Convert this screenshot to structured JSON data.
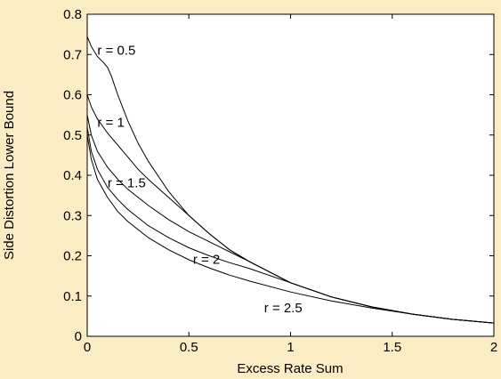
{
  "colors": {
    "background": "#fcecc4",
    "plot_area": "#ffffff",
    "line": "#000000"
  },
  "chart_data": {
    "type": "line",
    "title": "",
    "xlabel": "Excess Rate Sum",
    "ylabel": "Side Distortion Lower Bound",
    "xlim": [
      0,
      2
    ],
    "ylim": [
      0,
      0.8
    ],
    "xticks": [
      0,
      0.5,
      1,
      1.5,
      2
    ],
    "xtick_labels": [
      "0",
      "0.5",
      "1",
      "1.5",
      "2"
    ],
    "yticks": [
      0,
      0.1,
      0.2,
      0.3,
      0.4,
      0.5,
      0.6,
      0.7,
      0.8
    ],
    "ytick_labels": [
      "0",
      "0.1",
      "0.2",
      "0.3",
      "0.4",
      "0.5",
      "0.6",
      "0.7",
      "0.8"
    ],
    "grid": false,
    "series": [
      {
        "name": "r = 0.5",
        "x": [
          0,
          0.02,
          0.05,
          0.08,
          0.1,
          0.12,
          0.15,
          0.2,
          0.25,
          0.3,
          0.4,
          0.5,
          0.6,
          0.7,
          0.8,
          1.0,
          1.2,
          1.4,
          1.6,
          1.8,
          2.0
        ],
        "y": [
          0.745,
          0.72,
          0.695,
          0.68,
          0.668,
          0.645,
          0.6,
          0.535,
          0.48,
          0.435,
          0.36,
          0.3,
          0.255,
          0.215,
          0.185,
          0.133,
          0.098,
          0.073,
          0.055,
          0.042,
          0.033
        ],
        "label_at": [
          0.05,
          0.7
        ]
      },
      {
        "name": "r = 1",
        "x": [
          0,
          0.02,
          0.05,
          0.1,
          0.15,
          0.2,
          0.25,
          0.3,
          0.4,
          0.5,
          0.6,
          0.7,
          0.8,
          1.0,
          1.2,
          1.4,
          1.6,
          1.8,
          2.0
        ],
        "y": [
          0.6,
          0.57,
          0.54,
          0.505,
          0.475,
          0.445,
          0.415,
          0.39,
          0.345,
          0.3,
          0.255,
          0.215,
          0.185,
          0.133,
          0.098,
          0.073,
          0.055,
          0.042,
          0.033
        ],
        "label_at": [
          0.05,
          0.52
        ]
      },
      {
        "name": "r = 1.5",
        "x": [
          0,
          0.02,
          0.05,
          0.1,
          0.15,
          0.2,
          0.3,
          0.4,
          0.5,
          0.6,
          0.7,
          0.8,
          1.0,
          1.2,
          1.4,
          1.6,
          1.8,
          2.0
        ],
        "y": [
          0.55,
          0.5,
          0.46,
          0.42,
          0.39,
          0.365,
          0.325,
          0.29,
          0.26,
          0.235,
          0.21,
          0.185,
          0.133,
          0.098,
          0.073,
          0.055,
          0.042,
          0.033
        ],
        "label_at": [
          0.1,
          0.37
        ]
      },
      {
        "name": "r = 2",
        "x": [
          0,
          0.02,
          0.05,
          0.1,
          0.15,
          0.2,
          0.3,
          0.4,
          0.5,
          0.6,
          0.7,
          0.8,
          1.0,
          1.2,
          1.4,
          1.6,
          1.8,
          2.0
        ],
        "y": [
          0.52,
          0.46,
          0.415,
          0.37,
          0.34,
          0.315,
          0.275,
          0.245,
          0.22,
          0.2,
          0.183,
          0.168,
          0.133,
          0.098,
          0.073,
          0.055,
          0.042,
          0.033
        ],
        "label_at": [
          0.52,
          0.18
        ]
      },
      {
        "name": "r = 2.5",
        "x": [
          0,
          0.02,
          0.05,
          0.1,
          0.15,
          0.2,
          0.3,
          0.4,
          0.5,
          0.6,
          0.7,
          0.8,
          1.0,
          1.2,
          1.4,
          1.6,
          1.8,
          2.0
        ],
        "y": [
          0.5,
          0.44,
          0.39,
          0.345,
          0.31,
          0.285,
          0.245,
          0.215,
          0.19,
          0.17,
          0.152,
          0.137,
          0.11,
          0.088,
          0.07,
          0.055,
          0.042,
          0.033
        ],
        "label_at": [
          0.87,
          0.06
        ]
      }
    ]
  }
}
